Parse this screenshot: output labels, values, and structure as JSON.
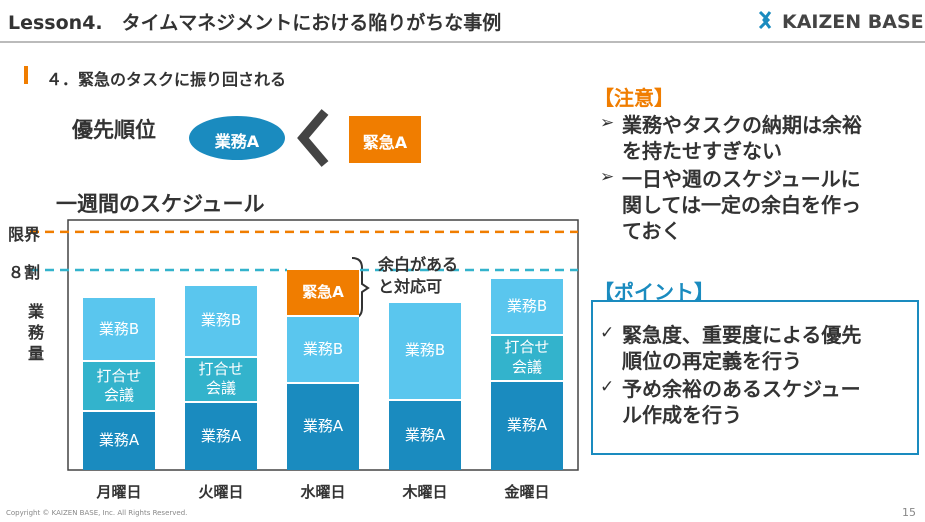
{
  "header": {
    "title": "Lesson4.　タイムマネジメントにおける陥りがちな事例",
    "logo": "KAIZEN BASE"
  },
  "section": "４．緊急のタスクに振り回される",
  "priority": {
    "label": "優先順位",
    "normal": "業務A",
    "urgent": "緊急A"
  },
  "chart_data": {
    "type": "bar",
    "stacked": true,
    "title": "一週間のスケジュール",
    "y_label": "業務量",
    "categories": [
      "月曜日",
      "火曜日",
      "水曜日",
      "木曜日",
      "金曜日"
    ],
    "series": [
      {
        "name": "業務A",
        "color": "#1a8bbf",
        "values": [
          25,
          29,
          37,
          30,
          38
        ]
      },
      {
        "name": "打合せ\n会議",
        "color": "#33b3cc",
        "values": [
          21,
          19,
          null,
          null,
          19
        ]
      },
      {
        "name": "業務B",
        "color": "#5ac6ee",
        "values": [
          27,
          30,
          28,
          41,
          24
        ]
      },
      {
        "name": "緊急A",
        "color": "#f07d00",
        "values": [
          null,
          null,
          20,
          null,
          null
        ]
      }
    ],
    "ylim": [
      0,
      105
    ],
    "reference_lines": [
      {
        "value": 100,
        "label": "限界",
        "color": "#f07d00"
      },
      {
        "value": 84,
        "label": "８割",
        "color": "#33b3cc"
      }
    ],
    "annotation": "余白がある\nと対応可"
  },
  "caution": {
    "heading": "【注意】",
    "items": [
      "業務やタスクの納期は余裕\nを持たせすぎない",
      "一日や週のスケジュールに\n関しては一定の余白を作っ\nておく"
    ]
  },
  "point": {
    "heading": "【ポイント】",
    "items": [
      "緊急度、重要度による優先\n順位の再定義を行う",
      "予め余裕のあるスケジュー\nル作成を行う"
    ]
  },
  "footer": {
    "copyright": "Copyright ©  KAIZEN BASE, Inc. All Rights Reserved.",
    "page": "15"
  }
}
